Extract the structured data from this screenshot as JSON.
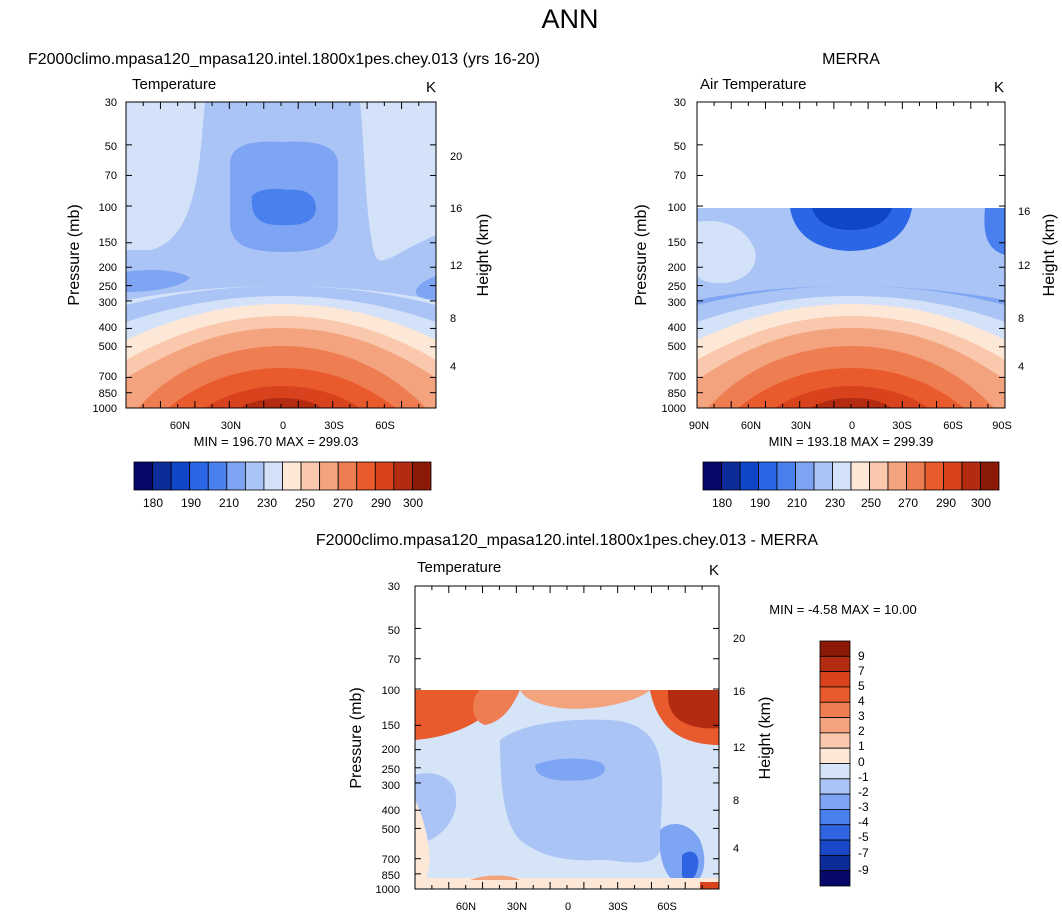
{
  "page_title": "ANN",
  "colors": {
    "abs_levels": [
      "#08086b",
      "#0b2c99",
      "#0f45c8",
      "#2a66e6",
      "#4a80ee",
      "#7ea4f4",
      "#aac4f6",
      "#d3e2f8",
      "#fde7d7",
      "#f9c8ad",
      "#f3a47f",
      "#ef7d52",
      "#e95a2c",
      "#d8421c",
      "#b32c11",
      "#8c1a08"
    ],
    "diff_levels": [
      "#08086b",
      "#0b2c99",
      "#1a47c8",
      "#2f64e3",
      "#4a80ee",
      "#7ea4f4",
      "#aac4f6",
      "#d6e4f8",
      "#fde7d7",
      "#f9c8ad",
      "#f3a47f",
      "#ef7d52",
      "#e95a2c",
      "#d8421c",
      "#b32c11",
      "#8c1a08"
    ]
  },
  "chart_data": [
    {
      "type": "heatmap",
      "title": "F2000climo.mpasa120_mpasa120.intel.1800x1pes.chey.013 (yrs 16-20)",
      "variable": "Temperature",
      "units": "K",
      "ylabel": "Pressure (mb)",
      "y2label": "Height (km)",
      "pressure_ticks": [
        "30",
        "50",
        "70",
        "100",
        "150",
        "200",
        "250",
        "300",
        "400",
        "500",
        "700",
        "850",
        "1000"
      ],
      "height_ticks": [
        "4",
        "8",
        "12",
        "16",
        "20"
      ],
      "x_ticks": [
        "60N",
        "30N",
        "0",
        "30S",
        "60S"
      ],
      "stats": "MIN = 196.70  MAX = 299.03",
      "p_top": 30,
      "colorbar_labels": [
        "180",
        "190",
        "210",
        "230",
        "250",
        "270",
        "290",
        "300"
      ]
    },
    {
      "type": "heatmap",
      "title": "MERRA",
      "variable": "Air Temperature",
      "units": "K",
      "ylabel": "Pressure (mb)",
      "y2label": "Height (km)",
      "pressure_ticks": [
        "30",
        "50",
        "70",
        "100",
        "150",
        "200",
        "250",
        "300",
        "400",
        "500",
        "700",
        "850",
        "1000"
      ],
      "height_ticks": [
        "4",
        "8",
        "12",
        "16"
      ],
      "x_ticks": [
        "90N",
        "60N",
        "30N",
        "0",
        "30S",
        "60S",
        "90S"
      ],
      "stats": "MIN = 193.18  MAX = 299.39",
      "p_top": 100,
      "colorbar_labels": [
        "180",
        "190",
        "210",
        "230",
        "250",
        "270",
        "290",
        "300"
      ]
    },
    {
      "type": "heatmap",
      "title": "F2000climo.mpasa120_mpasa120.intel.1800x1pes.chey.013 - MERRA",
      "variable": "Temperature",
      "units": "K",
      "ylabel": "Pressure (mb)",
      "y2label": "Height (km)",
      "pressure_ticks": [
        "30",
        "50",
        "70",
        "100",
        "150",
        "200",
        "250",
        "300",
        "400",
        "500",
        "700",
        "850",
        "1000"
      ],
      "height_ticks": [
        "4",
        "8",
        "12",
        "16",
        "20"
      ],
      "x_ticks": [
        "60N",
        "30N",
        "0",
        "30S",
        "60S"
      ],
      "stats": "MIN =  -4.58  MAX =  10.00",
      "p_top": 100,
      "colorbar_labels": [
        "9",
        "7",
        "5",
        "4",
        "3",
        "2",
        "1",
        "0",
        "-1",
        "-2",
        "-3",
        "-4",
        "-5",
        "-7",
        "-9"
      ]
    }
  ]
}
